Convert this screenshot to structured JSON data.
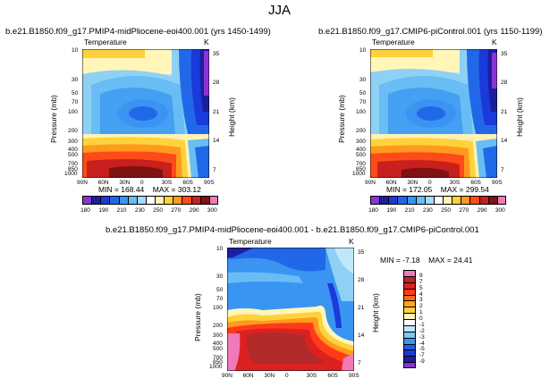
{
  "figure_title": "JJA",
  "chart_data": [
    {
      "type": "heatmap",
      "panel": "top-left",
      "title": "b.e21.B1850.f09_g17.PMIP4-midPliocene-eoi400.001 (yrs 1450-1499)",
      "variable": "Temperature",
      "units": "K",
      "xlabel": "",
      "ylabel": "Pressure (mb)",
      "ylabel_right": "Height (km)",
      "x_ticks": [
        "90N",
        "60N",
        "30N",
        "0",
        "30S",
        "60S",
        "90S"
      ],
      "y_ticks": [
        "10",
        "30",
        "50",
        "70",
        "100",
        "150",
        "200",
        "300",
        "400",
        "500",
        "700",
        "850",
        "1000"
      ],
      "y_ticks_labeled": [
        "10",
        "30",
        "50",
        "70",
        "100",
        "200",
        "300",
        "400",
        "500",
        "700",
        "850",
        "1000"
      ],
      "height_ticks": [
        "35",
        "28",
        "21",
        "14",
        "7"
      ],
      "stats": {
        "min_label": "MIN =",
        "min": "168.44",
        "max_label": "MAX =",
        "max": "303.12"
      },
      "colorbar_levels": [
        "180",
        "190",
        "200",
        "210",
        "220",
        "230",
        "240",
        "250",
        "260",
        "270",
        "280",
        "290",
        "300"
      ],
      "colorbar_labels": [
        "180",
        "190",
        "210",
        "230",
        "250",
        "270",
        "290",
        "300"
      ],
      "colorbar_colors": [
        "#8b33d6",
        "#1d1e9d",
        "#1a3ad9",
        "#2168e8",
        "#3a95f2",
        "#68bdf5",
        "#a5dcf7",
        "#ffffff",
        "#fff2b3",
        "#ffd23c",
        "#ff9a1d",
        "#ff4a1a",
        "#c81f1f",
        "#7f1212",
        "#f07ab8"
      ]
    },
    {
      "type": "heatmap",
      "panel": "top-right",
      "title": "b.e21.B1850.f09_g17.CMIP6-piControl.001 (yrs 1150-1199)",
      "variable": "Temperature",
      "units": "K",
      "xlabel": "",
      "ylabel": "Pressure (mb)",
      "ylabel_right": "Height (km)",
      "x_ticks": [
        "90N",
        "60N",
        "30N",
        "0",
        "30S",
        "60S",
        "90S"
      ],
      "y_ticks_labeled": [
        "10",
        "30",
        "50",
        "70",
        "100",
        "200",
        "300",
        "400",
        "500",
        "700",
        "850",
        "1000"
      ],
      "height_ticks": [
        "35",
        "28",
        "21",
        "14",
        "7"
      ],
      "stats": {
        "min_label": "MIN =",
        "min": "172.05",
        "max_label": "MAX =",
        "max": "299.54"
      },
      "colorbar_levels": [
        "180",
        "190",
        "200",
        "210",
        "220",
        "230",
        "240",
        "250",
        "260",
        "270",
        "280",
        "290",
        "300"
      ],
      "colorbar_labels": [
        "180",
        "190",
        "210",
        "230",
        "250",
        "270",
        "290",
        "300"
      ]
    },
    {
      "type": "heatmap",
      "panel": "bottom",
      "title": "b.e21.B1850.f09_g17.PMIP4-midPliocene-eoi400.001  -  b.e21.B1850.f09_g17.CMIP6-piControl.001",
      "variable": "Temperature",
      "units": "K",
      "xlabel": "",
      "ylabel": "Pressure (mb)",
      "ylabel_right": "Height (km)",
      "x_ticks": [
        "90N",
        "60N",
        "30N",
        "0",
        "30S",
        "60S",
        "90S"
      ],
      "y_ticks_labeled": [
        "10",
        "30",
        "50",
        "70",
        "100",
        "200",
        "300",
        "400",
        "500",
        "700",
        "850",
        "1000"
      ],
      "height_ticks": [
        "35",
        "28",
        "21",
        "14",
        "7"
      ],
      "stats": {
        "min_label": "MIN =",
        "min": "-7.18",
        "max_label": "MAX =",
        "max": "24.41"
      },
      "colorbar_levels": [
        "9",
        "7",
        "5",
        "4",
        "3",
        "2",
        "1",
        "0",
        "-1",
        "-2",
        "-3",
        "-4",
        "-5",
        "-7",
        "-9"
      ],
      "colorbar_colors": [
        "#f07ab8",
        "#b22a2a",
        "#dd2020",
        "#ff3a1a",
        "#ff6a1a",
        "#ffa51c",
        "#ffd23c",
        "#fff6b8",
        "#ffffff",
        "#bfe6fa",
        "#7cc6f5",
        "#3a95f2",
        "#1f5fe0",
        "#1a3ad9",
        "#1d1e9d",
        "#8b33d6"
      ]
    }
  ]
}
